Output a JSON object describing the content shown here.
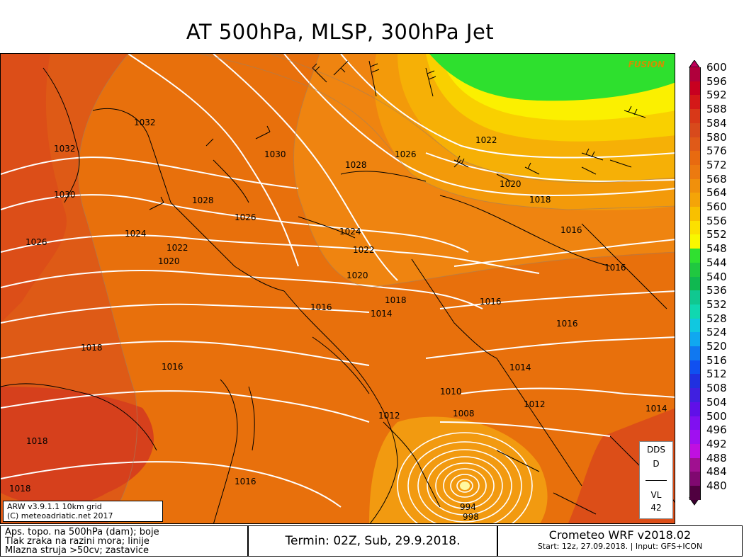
{
  "title": "AT 500hPa, MLSP, 300hPa Jet",
  "watermark": "FUSION",
  "model_box": {
    "line1": "ARW v3.9.1.1 10km grid",
    "line2": "(C) meteoadriatic.net 2017"
  },
  "dds_box": {
    "line1": "DDS",
    "line2": "D",
    "line3": "VL",
    "line4": "42"
  },
  "pressure_labels": [
    {
      "text": "1032"
    },
    {
      "text": "1032"
    },
    {
      "text": "1030"
    },
    {
      "text": "1030"
    },
    {
      "text": "1028"
    },
    {
      "text": "1026"
    },
    {
      "text": "1022"
    },
    {
      "text": "1026"
    },
    {
      "text": "1028"
    },
    {
      "text": "1026"
    },
    {
      "text": "1024"
    },
    {
      "text": "1022"
    },
    {
      "text": "1020"
    },
    {
      "text": "1024"
    },
    {
      "text": "1022"
    },
    {
      "text": "1020"
    },
    {
      "text": "1018"
    },
    {
      "text": "1016"
    },
    {
      "text": "1016"
    },
    {
      "text": "1020"
    },
    {
      "text": "1016"
    },
    {
      "text": "1018"
    },
    {
      "text": "1014"
    },
    {
      "text": "1016"
    },
    {
      "text": "1016"
    },
    {
      "text": "1018"
    },
    {
      "text": "1016"
    },
    {
      "text": "1014"
    },
    {
      "text": "1012"
    },
    {
      "text": "1010"
    },
    {
      "text": "1008"
    },
    {
      "text": "1012"
    },
    {
      "text": "1014"
    },
    {
      "text": "1018"
    },
    {
      "text": "1018"
    },
    {
      "text": "1016"
    },
    {
      "text": "994"
    },
    {
      "text": "998"
    }
  ],
  "scale": {
    "values": [
      "600",
      "596",
      "592",
      "588",
      "584",
      "580",
      "576",
      "572",
      "568",
      "564",
      "560",
      "556",
      "552",
      "548",
      "544",
      "540",
      "536",
      "532",
      "528",
      "524",
      "520",
      "516",
      "512",
      "508",
      "504",
      "500",
      "496",
      "492",
      "488",
      "484",
      "480"
    ],
    "colors": [
      "#b0003c",
      "#c80020",
      "#d41818",
      "#d83818",
      "#d84a1c",
      "#e05a18",
      "#e86a10",
      "#ec7a10",
      "#f0900c",
      "#f4a408",
      "#f8c000",
      "#fce000",
      "#f8f800",
      "#30e030",
      "#20c840",
      "#10b850",
      "#10c890",
      "#10d8b0",
      "#10c8e0",
      "#10a8f0",
      "#1078f0",
      "#1050f0",
      "#2030e0",
      "#4020e0",
      "#6010e8",
      "#8010f0",
      "#a010f0",
      "#c010e0",
      "#a01090",
      "#800870",
      "#500040"
    ]
  },
  "footer": {
    "legend": [
      "Aps. topo. na 500hPa (dam); boje",
      "Tlak zraka na razini mora; linije",
      "Mlazna struja >50cv; zastavice"
    ],
    "termin": "Termin: 02Z, Sub, 29.9.2018.",
    "crometeo": "Crometeo WRF v2018.02",
    "start": "Start: 12z, 27.09.2018. | Input: GFS+ICON"
  }
}
